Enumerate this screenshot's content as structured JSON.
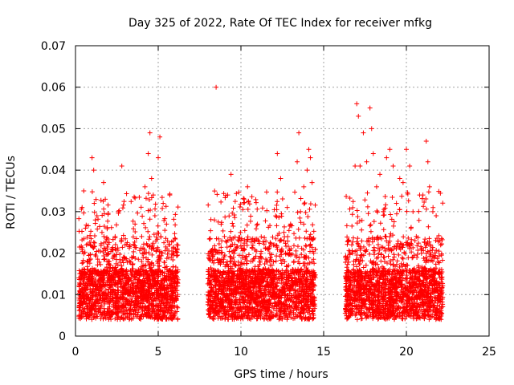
{
  "chart_data": {
    "type": "scatter",
    "title": "Day 325 of 2022, Rate Of TEC Index for receiver mfkg",
    "xlabel": "GPS time / hours",
    "ylabel": "ROTI / TECUs",
    "xlim": [
      0,
      25
    ],
    "ylim": [
      0,
      0.07
    ],
    "x_ticks": [
      "0",
      "5",
      "10",
      "15",
      "20",
      "25"
    ],
    "y_ticks": [
      "0",
      "0.01",
      "0.02",
      "0.03",
      "0.04",
      "0.05",
      "0.06",
      "0.07"
    ],
    "grid": true,
    "marker": "plus",
    "color": "#ff0000",
    "series": [
      {
        "note_x_coverage": "data present roughly 0.2-6.2 h, 8.0-14.5 h, 16.3-22.2 h",
        "points": [
          [
            0.3,
            0.011
          ],
          [
            0.4,
            0.031
          ],
          [
            0.5,
            0.035
          ],
          [
            0.6,
            0.026
          ],
          [
            0.7,
            0.018
          ],
          [
            0.8,
            0.009
          ],
          [
            0.9,
            0.022
          ],
          [
            1.0,
            0.043
          ],
          [
            1.1,
            0.04
          ],
          [
            1.2,
            0.028
          ],
          [
            1.3,
            0.015
          ],
          [
            1.5,
            0.012
          ],
          [
            1.6,
            0.025
          ],
          [
            1.7,
            0.037
          ],
          [
            1.8,
            0.033
          ],
          [
            1.9,
            0.018
          ],
          [
            2.0,
            0.01
          ],
          [
            2.2,
            0.014
          ],
          [
            2.4,
            0.021
          ],
          [
            2.6,
            0.03
          ],
          [
            2.8,
            0.041
          ],
          [
            3.0,
            0.022
          ],
          [
            3.2,
            0.012
          ],
          [
            3.4,
            0.019
          ],
          [
            3.6,
            0.027
          ],
          [
            3.8,
            0.016
          ],
          [
            4.0,
            0.024
          ],
          [
            4.2,
            0.036
          ],
          [
            4.4,
            0.044
          ],
          [
            4.5,
            0.049
          ],
          [
            4.6,
            0.038
          ],
          [
            4.7,
            0.034
          ],
          [
            4.8,
            0.029
          ],
          [
            4.9,
            0.006
          ],
          [
            5.0,
            0.043
          ],
          [
            5.1,
            0.048
          ],
          [
            5.3,
            0.032
          ],
          [
            5.5,
            0.027
          ],
          [
            5.7,
            0.034
          ],
          [
            5.9,
            0.02
          ],
          [
            6.0,
            0.012
          ],
          [
            6.1,
            0.009
          ],
          [
            8.2,
            0.011
          ],
          [
            8.4,
            0.028
          ],
          [
            8.5,
            0.06
          ],
          [
            8.6,
            0.013
          ],
          [
            8.8,
            0.02
          ],
          [
            9.0,
            0.024
          ],
          [
            9.2,
            0.034
          ],
          [
            9.4,
            0.039
          ],
          [
            9.6,
            0.018
          ],
          [
            9.8,
            0.012
          ],
          [
            10.0,
            0.023
          ],
          [
            10.2,
            0.021
          ],
          [
            10.4,
            0.036
          ],
          [
            10.6,
            0.018
          ],
          [
            10.8,
            0.012
          ],
          [
            11.0,
            0.027
          ],
          [
            11.2,
            0.019
          ],
          [
            11.4,
            0.016
          ],
          [
            11.6,
            0.021
          ],
          [
            11.8,
            0.014
          ],
          [
            12.0,
            0.022
          ],
          [
            12.2,
            0.044
          ],
          [
            12.4,
            0.038
          ],
          [
            12.6,
            0.025
          ],
          [
            12.8,
            0.031
          ],
          [
            13.0,
            0.027
          ],
          [
            13.2,
            0.018
          ],
          [
            13.4,
            0.042
          ],
          [
            13.5,
            0.049
          ],
          [
            13.6,
            0.03
          ],
          [
            13.8,
            0.036
          ],
          [
            14.0,
            0.04
          ],
          [
            14.1,
            0.045
          ],
          [
            14.2,
            0.043
          ],
          [
            14.3,
            0.037
          ],
          [
            14.4,
            0.02
          ],
          [
            16.5,
            0.012
          ],
          [
            16.7,
            0.022
          ],
          [
            16.9,
            0.041
          ],
          [
            17.0,
            0.056
          ],
          [
            17.1,
            0.053
          ],
          [
            17.2,
            0.041
          ],
          [
            17.4,
            0.049
          ],
          [
            17.6,
            0.042
          ],
          [
            17.8,
            0.055
          ],
          [
            17.9,
            0.05
          ],
          [
            18.0,
            0.044
          ],
          [
            18.2,
            0.036
          ],
          [
            18.4,
            0.039
          ],
          [
            18.6,
            0.03
          ],
          [
            18.8,
            0.043
          ],
          [
            19.0,
            0.045
          ],
          [
            19.2,
            0.041
          ],
          [
            19.4,
            0.032
          ],
          [
            19.6,
            0.038
          ],
          [
            19.8,
            0.037
          ],
          [
            20.0,
            0.045
          ],
          [
            20.2,
            0.041
          ],
          [
            20.4,
            0.03
          ],
          [
            20.6,
            0.024
          ],
          [
            20.8,
            0.034
          ],
          [
            21.0,
            0.034
          ],
          [
            21.2,
            0.047
          ],
          [
            21.3,
            0.042
          ],
          [
            21.4,
            0.036
          ],
          [
            21.6,
            0.03
          ],
          [
            21.8,
            0.029
          ],
          [
            22.0,
            0.023
          ],
          [
            22.1,
            0.013
          ]
        ]
      }
    ]
  }
}
